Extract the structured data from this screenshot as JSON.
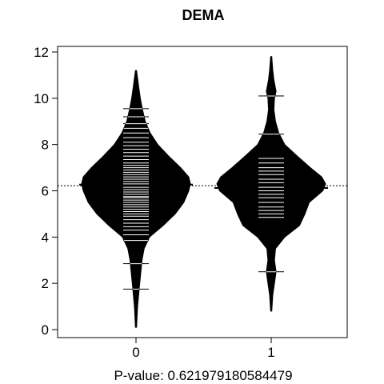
{
  "chart_data": {
    "type": "beanplot",
    "title": "DEMA",
    "xlabel": "P-value: 0.621979180584479",
    "ylabel": "",
    "categories": [
      "0",
      "1"
    ],
    "ylim": [
      0,
      12
    ],
    "yticks": [
      "0",
      "2",
      "4",
      "6",
      "8",
      "10",
      "12"
    ],
    "overall_mean": 6.22,
    "grid": false,
    "beans": [
      {
        "group": "0",
        "mean": 6.27,
        "range": [
          0.1,
          11.2
        ],
        "density": [
          [
            0.1,
            0.01
          ],
          [
            1.0,
            0.03
          ],
          [
            1.8,
            0.06
          ],
          [
            2.5,
            0.09
          ],
          [
            3.0,
            0.11
          ],
          [
            3.5,
            0.15
          ],
          [
            4.0,
            0.25
          ],
          [
            4.5,
            0.5
          ],
          [
            5.0,
            0.72
          ],
          [
            5.5,
            0.88
          ],
          [
            6.0,
            0.97
          ],
          [
            6.3,
            1.0
          ],
          [
            6.6,
            0.97
          ],
          [
            7.0,
            0.82
          ],
          [
            7.5,
            0.6
          ],
          [
            8.0,
            0.4
          ],
          [
            8.5,
            0.26
          ],
          [
            9.0,
            0.17
          ],
          [
            9.5,
            0.12
          ],
          [
            10.0,
            0.08
          ],
          [
            10.5,
            0.05
          ],
          [
            11.2,
            0.01
          ]
        ],
        "observations": [
          1.75,
          2.85,
          3.85,
          4.1,
          4.3,
          4.45,
          4.6,
          4.75,
          4.9,
          5.0,
          5.1,
          5.2,
          5.3,
          5.4,
          5.5,
          5.6,
          5.7,
          5.75,
          5.85,
          5.95,
          6.05,
          6.15,
          6.3,
          6.4,
          6.5,
          6.6,
          6.7,
          6.8,
          6.9,
          7.0,
          7.1,
          7.2,
          7.35,
          7.5,
          7.65,
          7.8,
          7.95,
          8.1,
          8.3,
          8.5,
          8.7,
          8.9,
          9.2,
          9.55
        ]
      },
      {
        "group": "1",
        "mean": 6.12,
        "range": [
          0.8,
          11.8
        ],
        "density": [
          [
            0.8,
            0.01
          ],
          [
            1.5,
            0.03
          ],
          [
            2.0,
            0.06
          ],
          [
            2.5,
            0.09
          ],
          [
            3.0,
            0.06
          ],
          [
            3.5,
            0.08
          ],
          [
            4.0,
            0.25
          ],
          [
            4.5,
            0.52
          ],
          [
            5.0,
            0.62
          ],
          [
            5.5,
            0.7
          ],
          [
            6.0,
            0.95
          ],
          [
            6.3,
            1.0
          ],
          [
            6.6,
            0.93
          ],
          [
            7.0,
            0.72
          ],
          [
            7.5,
            0.48
          ],
          [
            8.0,
            0.25
          ],
          [
            8.5,
            0.14
          ],
          [
            9.0,
            0.08
          ],
          [
            9.5,
            0.05
          ],
          [
            10.0,
            0.06
          ],
          [
            10.3,
            0.09
          ],
          [
            10.8,
            0.05
          ],
          [
            11.2,
            0.03
          ],
          [
            11.8,
            0.01
          ]
        ],
        "observations": [
          2.5,
          4.85,
          5.0,
          5.15,
          5.3,
          5.5,
          5.7,
          5.85,
          6.0,
          6.15,
          6.35,
          6.5,
          6.7,
          6.85,
          7.0,
          7.2,
          7.4,
          8.45,
          10.1
        ]
      }
    ]
  }
}
